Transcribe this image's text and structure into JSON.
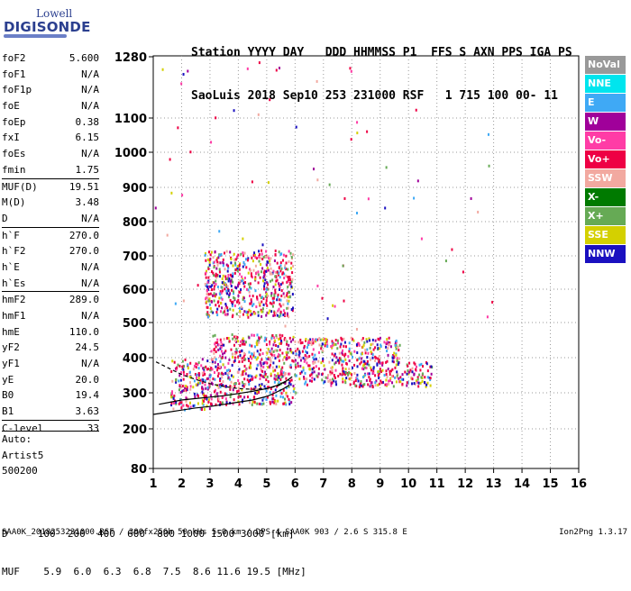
{
  "logo": {
    "line1": "Lowell",
    "line2": "DIGISONDE"
  },
  "header": {
    "row1": "Station YYYY DAY   DDD HHMMSS P1  FFS S AXN PPS IGA PS",
    "row2": "SaoLuis 2018 Sep10 253 231000 RSF   1 715 100 00- 11"
  },
  "params": [
    {
      "name": "foF2",
      "value": "5.600"
    },
    {
      "name": "foF1",
      "value": "N/A"
    },
    {
      "name": "foF1p",
      "value": "N/A"
    },
    {
      "name": "foE",
      "value": "N/A"
    },
    {
      "name": "foEp",
      "value": "0.38"
    },
    {
      "name": "fxI",
      "value": "6.15"
    },
    {
      "name": "foEs",
      "value": "N/A"
    },
    {
      "name": "fmin",
      "value": "1.75"
    },
    {
      "name": "MUF(D)",
      "value": "19.51"
    },
    {
      "name": "M(D)",
      "value": "3.48"
    },
    {
      "name": "D",
      "value": "N/A"
    },
    {
      "name": "h`F",
      "value": "270.0"
    },
    {
      "name": "h`F2",
      "value": "270.0"
    },
    {
      "name": "h`E",
      "value": "N/A"
    },
    {
      "name": "h`Es",
      "value": "N/A"
    },
    {
      "name": "hmF2",
      "value": "289.0"
    },
    {
      "name": "hmF1",
      "value": "N/A"
    },
    {
      "name": "hmE",
      "value": "110.0"
    },
    {
      "name": "yF2",
      "value": "24.5"
    },
    {
      "name": "yF1",
      "value": "N/A"
    },
    {
      "name": "yE",
      "value": "20.0"
    },
    {
      "name": "B0",
      "value": "19.4"
    },
    {
      "name": "B1",
      "value": "3.63"
    },
    {
      "name": "C-level",
      "value": "33"
    }
  ],
  "auto": {
    "label": "Auto:",
    "system": "Artist5",
    "version": "500200"
  },
  "dmuf": {
    "row1": "D     100  200  400  600  800 1000 1500 3000 [km]",
    "row2": "MUF    5.9  6.0  6.3  6.8  7.5  8.6 11.6 19.5 [MHz]"
  },
  "footer": {
    "left": "SAA0K_2018253231000.RSF / 300fx256h 50 kHs 5.0 km / DPS-4 SAA0K 903 / 2.6 S 315.8 E",
    "right": "Ion2Png 1.3.17"
  },
  "legend": [
    {
      "label": "NoVal",
      "color": "#999999"
    },
    {
      "label": "NNE",
      "color": "#00e5ee"
    },
    {
      "label": "E",
      "color": "#3fa9f5"
    },
    {
      "label": "W",
      "color": "#a0009a"
    },
    {
      "label": "Vo-",
      "color": "#ff3ca6"
    },
    {
      "label": "Vo+",
      "color": "#ee0044"
    },
    {
      "label": "SSW",
      "color": "#f2a9a0"
    },
    {
      "label": "X-",
      "color": "#007a00"
    },
    {
      "label": "X+",
      "color": "#66aa55"
    },
    {
      "label": "SSE",
      "color": "#d4d000"
    },
    {
      "label": "NNW",
      "color": "#1a10c0"
    }
  ],
  "chart_data": {
    "type": "scatter",
    "title": "",
    "xlabel": "",
    "ylabel": "",
    "xlim": [
      1,
      16
    ],
    "ylim": [
      80,
      1280
    ],
    "x_ticks": [
      1,
      2,
      3,
      4,
      5,
      6,
      7,
      8,
      9,
      10,
      11,
      12,
      13,
      14,
      15,
      16
    ],
    "y_ticks": [
      80,
      200,
      300,
      400,
      500,
      600,
      700,
      800,
      900,
      1000,
      1100,
      1280
    ],
    "y_scale": "non-linear (ionogram virtual height)",
    "grid": true,
    "legend_position": "right",
    "series": [
      {
        "name": "trace-low",
        "points": [
          [
            1.0,
            240
          ],
          [
            1.5,
            246
          ],
          [
            2.0,
            252
          ],
          [
            2.5,
            258
          ],
          [
            3.0,
            262
          ],
          [
            3.5,
            268
          ],
          [
            4.0,
            274
          ],
          [
            4.5,
            280
          ],
          [
            5.0,
            290
          ],
          [
            5.3,
            300
          ],
          [
            5.6,
            312
          ],
          [
            5.8,
            322
          ]
        ]
      },
      {
        "name": "trace-mid",
        "points": [
          [
            1.2,
            268
          ],
          [
            1.6,
            274
          ],
          [
            2.0,
            280
          ],
          [
            2.5,
            284
          ],
          [
            3.0,
            288
          ],
          [
            3.5,
            292
          ],
          [
            4.0,
            298
          ],
          [
            4.5,
            304
          ],
          [
            5.0,
            312
          ],
          [
            5.4,
            322
          ],
          [
            5.7,
            334
          ],
          [
            5.9,
            346
          ]
        ]
      },
      {
        "name": "trace-dashed",
        "points": [
          [
            1.1,
            388
          ],
          [
            1.5,
            372
          ],
          [
            2.0,
            352
          ],
          [
            2.5,
            338
          ],
          [
            3.0,
            326
          ],
          [
            3.5,
            318
          ],
          [
            4.0,
            312
          ],
          [
            4.5,
            310
          ],
          [
            5.0,
            312
          ],
          [
            5.4,
            320
          ],
          [
            5.8,
            336
          ]
        ]
      }
    ],
    "scatter_regions": [
      {
        "xmin": 1.6,
        "xmax": 3.0,
        "ymin": 255,
        "ymax": 400,
        "color": "#ee0044"
      },
      {
        "xmin": 3.0,
        "xmax": 6.0,
        "ymin": 270,
        "ymax": 470,
        "color": "#ee0044"
      },
      {
        "xmin": 6.0,
        "xmax": 9.7,
        "ymin": 320,
        "ymax": 460,
        "color": "#ee0044"
      },
      {
        "xmin": 9.7,
        "xmax": 10.8,
        "ymin": 320,
        "ymax": 390,
        "color": "#ee0044"
      },
      {
        "xmin": 2.8,
        "xmax": 5.9,
        "ymin": 520,
        "ymax": 720,
        "color": "#ee0044"
      }
    ]
  }
}
